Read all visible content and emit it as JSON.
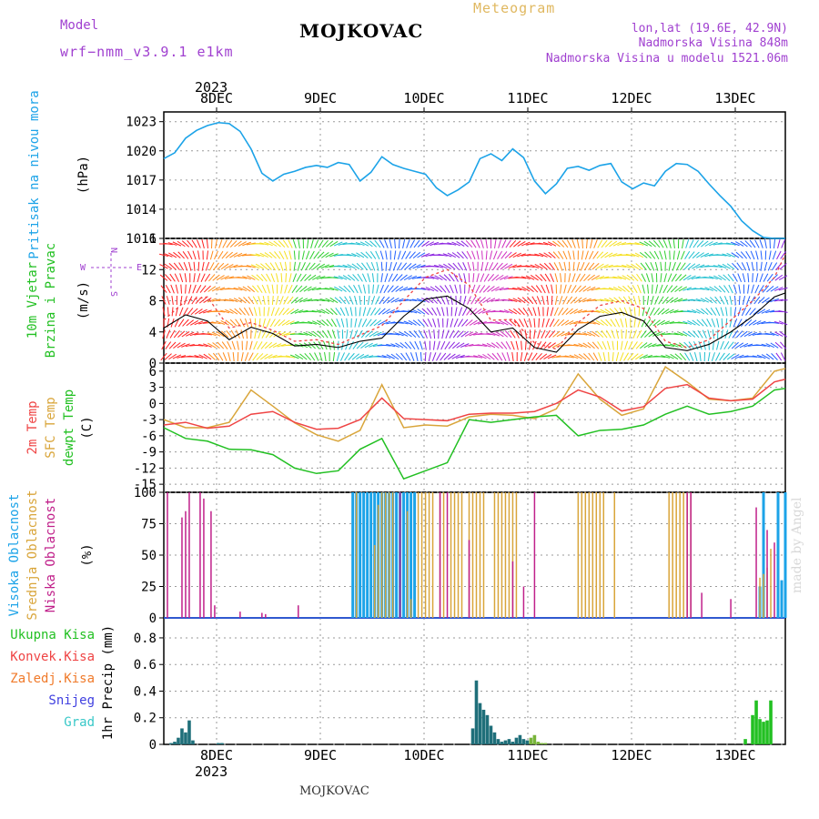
{
  "header": {
    "title": "MOJKOVAC",
    "subtitle": "Meteogram",
    "model_label": "Model",
    "model_value": "wrf−nmm_v3.9.1  e1km",
    "lonlat": "lon,lat (19.6E, 42.9N)",
    "altitude": "Nadmorska Visina 848m",
    "model_altitude": "Nadmorska Visina u modelu 1521.06m",
    "footer": "MOJKOVAC",
    "watermark": "made by Angel"
  },
  "colors": {
    "pressure": "#1ca3e8",
    "temp2m": "#ef4444",
    "sfc": "#d9a53a",
    "dewpt": "#22c022",
    "high_cloud": "#1ca3e8",
    "mid_cloud": "#d9a53a",
    "low_cloud": "#c0208a",
    "precip_total": "#22c022",
    "precip_conv": "#ef4444",
    "grid": "#9a9a9a"
  },
  "chart_data": [
    {
      "type": "line",
      "panel": "pressure",
      "top_year": "2023",
      "day_labels": [
        "8DEC",
        "9DEC",
        "10DEC",
        "11DEC",
        "12DEC",
        "13DEC"
      ],
      "ylabel_left": "Pritisak na nivou mora",
      "ylabel_units": "(hPa)",
      "yticks": [
        1011,
        1014,
        1017,
        1020,
        1023
      ],
      "ylim": [
        1011,
        1024
      ],
      "x": [
        0,
        3,
        6,
        9,
        12,
        15,
        18,
        21,
        24,
        27,
        30,
        33,
        36,
        39,
        42,
        45,
        48,
        51,
        54,
        57,
        60,
        63,
        66,
        69,
        72,
        75,
        78,
        81,
        84,
        87,
        90,
        93,
        96,
        99,
        102,
        105,
        108,
        111,
        114,
        117,
        120,
        123,
        126,
        129,
        132,
        135,
        138,
        141,
        144,
        147,
        150,
        153,
        156,
        159,
        162,
        165,
        168,
        171
      ],
      "series": [
        {
          "name": "pressure",
          "values": [
            1019.2,
            1019.8,
            1021.3,
            1022.1,
            1022.6,
            1022.9,
            1022.8,
            1022.0,
            1020.2,
            1017.7,
            1016.9,
            1017.6,
            1017.9,
            1018.3,
            1018.5,
            1018.3,
            1018.8,
            1018.6,
            1016.9,
            1017.8,
            1019.4,
            1018.6,
            1018.2,
            1017.9,
            1017.6,
            1016.2,
            1015.4,
            1016.0,
            1016.8,
            1019.2,
            1019.7,
            1019.0,
            1020.2,
            1019.3,
            1016.9,
            1015.6,
            1016.6,
            1018.2,
            1018.4,
            1018.0,
            1018.5,
            1018.7,
            1016.8,
            1016.1,
            1016.7,
            1016.4,
            1017.9,
            1018.7,
            1018.6,
            1017.9,
            1016.6,
            1015.4,
            1014.3,
            1012.8,
            1011.8,
            1011.1,
            1011.0,
            1011.0
          ]
        }
      ]
    },
    {
      "type": "line",
      "panel": "wind",
      "ylabel_left": [
        "10m Vjetar",
        "Brzina i Pravac"
      ],
      "ylabel_units": "(m/s)",
      "compass": [
        "N",
        "E",
        "S",
        "W"
      ],
      "yticks": [
        0,
        4,
        8,
        12,
        16
      ],
      "ylim": [
        0,
        16
      ],
      "x": [
        0,
        6,
        12,
        18,
        24,
        30,
        36,
        42,
        48,
        54,
        60,
        66,
        72,
        78,
        84,
        90,
        96,
        102,
        108,
        114,
        120,
        126,
        132,
        138,
        144,
        150,
        156,
        162,
        168,
        171
      ],
      "series": [
        {
          "name": "speed",
          "values": [
            4.5,
            6.2,
            5.4,
            3.0,
            4.6,
            3.8,
            2.2,
            2.4,
            2.0,
            2.8,
            3.2,
            6.0,
            8.2,
            8.6,
            7.0,
            4.0,
            4.5,
            2.0,
            1.4,
            4.3,
            6.0,
            6.5,
            5.4,
            2.0,
            1.6,
            2.4,
            4.0,
            6.0,
            8.5,
            9.0
          ]
        },
        {
          "name": "gust",
          "values": [
            5.5,
            8.0,
            8.5,
            4.5,
            5.2,
            4.2,
            2.8,
            3.0,
            2.4,
            3.6,
            4.8,
            8.0,
            11.0,
            12.0,
            10.0,
            5.5,
            5.6,
            2.6,
            1.8,
            5.2,
            7.4,
            8.0,
            7.0,
            2.8,
            2.0,
            3.0,
            5.5,
            8.0,
            11.0,
            14.0
          ]
        }
      ]
    },
    {
      "type": "line",
      "panel": "temperature",
      "ylabel_left": [
        "2m Temp",
        "SFC Temp",
        "dewpt Temp"
      ],
      "ylabel_units": "(C)",
      "yticks": [
        -15,
        -12,
        -9,
        -6,
        -3,
        0,
        3,
        6
      ],
      "ylim": [
        -16.5,
        7.5
      ],
      "x": [
        0,
        6,
        12,
        18,
        24,
        30,
        36,
        42,
        48,
        54,
        60,
        66,
        72,
        78,
        84,
        90,
        96,
        102,
        108,
        114,
        120,
        126,
        132,
        138,
        144,
        150,
        156,
        162,
        168,
        171
      ],
      "series": [
        {
          "name": "2m Temp",
          "values": [
            -4.0,
            -3.5,
            -4.6,
            -4.2,
            -2.0,
            -1.5,
            -3.5,
            -4.8,
            -4.6,
            -3.0,
            1.0,
            -2.8,
            -3.0,
            -3.2,
            -2.0,
            -1.8,
            -1.8,
            -1.5,
            0.0,
            2.5,
            1.2,
            -1.4,
            -0.6,
            2.8,
            3.5,
            1.0,
            0.5,
            0.8,
            4.0,
            4.5
          ]
        },
        {
          "name": "SFC Temp",
          "values": [
            -3.0,
            -4.5,
            -4.5,
            -3.5,
            2.5,
            -0.5,
            -3.6,
            -5.8,
            -7.0,
            -5.0,
            3.5,
            -4.5,
            -4.0,
            -4.2,
            -2.5,
            -2.0,
            -2.2,
            -2.8,
            -1.0,
            5.5,
            0.8,
            -2.2,
            -1.0,
            6.8,
            4.0,
            0.8,
            0.5,
            1.0,
            6.0,
            6.5
          ]
        },
        {
          "name": "dewpt Temp",
          "values": [
            -4.5,
            -6.5,
            -7.0,
            -8.5,
            -8.6,
            -9.5,
            -12.0,
            -13.0,
            -12.5,
            -8.5,
            -6.5,
            -14.0,
            -12.5,
            -11.0,
            -3.0,
            -3.5,
            -3.0,
            -2.5,
            -2.2,
            -6.0,
            -5.0,
            -4.8,
            -4.0,
            -2.0,
            -0.5,
            -2.0,
            -1.5,
            -0.5,
            2.5,
            2.8
          ]
        }
      ]
    },
    {
      "type": "bar",
      "panel": "clouds",
      "ylabel_left": [
        "Visoka Oblacnost",
        "Srednja Oblacnost",
        "Niska Oblacnost"
      ],
      "ylabel_units": "(%)",
      "yticks": [
        0,
        25,
        50,
        75,
        100
      ],
      "ylim": [
        0,
        100
      ],
      "series": [
        {
          "name": "Niska Oblacnost",
          "x": [
            1,
            5,
            6,
            7,
            10,
            11,
            13,
            14,
            21,
            27,
            28,
            37,
            65,
            76,
            78,
            84,
            96,
            99,
            102,
            144,
            145,
            148,
            156,
            163,
            166,
            168
          ],
          "values": [
            100,
            80,
            85,
            100,
            100,
            95,
            85,
            10,
            5,
            4,
            3,
            10,
            100,
            100,
            100,
            62,
            45,
            25,
            100,
            100,
            100,
            20,
            15,
            88,
            70,
            60
          ]
        },
        {
          "name": "Srednja Oblacnost",
          "x": [
            53,
            58,
            59,
            60,
            61,
            62,
            63,
            67,
            68,
            70,
            71,
            72,
            73,
            74,
            76,
            77,
            79,
            80,
            81,
            82,
            84,
            85,
            86,
            87,
            88,
            91,
            92,
            93,
            94,
            95,
            96,
            97,
            114,
            115,
            116,
            117,
            118,
            119,
            120,
            121,
            124,
            139,
            140,
            141,
            142,
            143,
            144,
            145,
            164,
            165,
            166,
            167
          ],
          "values": [
            100,
            58,
            90,
            100,
            100,
            100,
            100,
            85,
            15,
            100,
            100,
            100,
            100,
            100,
            100,
            100,
            100,
            100,
            100,
            100,
            100,
            100,
            100,
            100,
            100,
            100,
            100,
            100,
            100,
            100,
            100,
            100,
            100,
            100,
            100,
            100,
            100,
            100,
            100,
            100,
            100,
            100,
            100,
            100,
            100,
            100,
            100,
            100,
            32,
            35,
            40,
            55
          ]
        },
        {
          "name": "Visoka Oblacnost",
          "x": [
            52,
            53,
            54,
            55,
            56,
            57,
            58,
            59,
            60,
            61,
            62,
            63,
            64,
            65,
            66,
            67,
            68,
            69,
            164,
            165,
            169,
            170,
            171
          ],
          "values": [
            100,
            100,
            100,
            100,
            100,
            100,
            100,
            100,
            100,
            100,
            100,
            100,
            100,
            100,
            100,
            100,
            100,
            100,
            25,
            100,
            100,
            30,
            100
          ]
        }
      ]
    },
    {
      "type": "bar",
      "panel": "precip",
      "legend": [
        "Ukupna  Kisa",
        "Konvek.Kisa",
        "Zaledj.Kisa",
        "Snijeg",
        "Grad"
      ],
      "ylabel_left": "1hr Precip (mm)",
      "yticks": [
        0,
        0.2,
        0.4,
        0.6,
        0.8
      ],
      "ylim": [
        0,
        0.95
      ],
      "bottom_day_labels": [
        "8DEC",
        "9DEC",
        "10DEC",
        "11DEC",
        "12DEC",
        "13DEC"
      ],
      "bottom_year": "2023",
      "x": [
        2,
        3,
        4,
        5,
        6,
        7,
        8,
        15,
        16,
        85,
        86,
        87,
        88,
        89,
        90,
        91,
        92,
        93,
        94,
        95,
        96,
        97,
        98,
        99,
        100,
        101,
        102,
        103,
        104,
        105,
        160,
        162,
        163,
        164,
        165,
        166,
        167
      ],
      "values": [
        0.01,
        0.02,
        0.05,
        0.12,
        0.09,
        0.18,
        0.03,
        0.01,
        0.01,
        0.12,
        0.48,
        0.31,
        0.26,
        0.22,
        0.14,
        0.09,
        0.04,
        0.02,
        0.03,
        0.04,
        0.02,
        0.05,
        0.07,
        0.04,
        0.03,
        0.05,
        0.07,
        0.02,
        0.01,
        0.01,
        0.04,
        0.22,
        0.33,
        0.19,
        0.17,
        0.18,
        0.33
      ]
    }
  ]
}
